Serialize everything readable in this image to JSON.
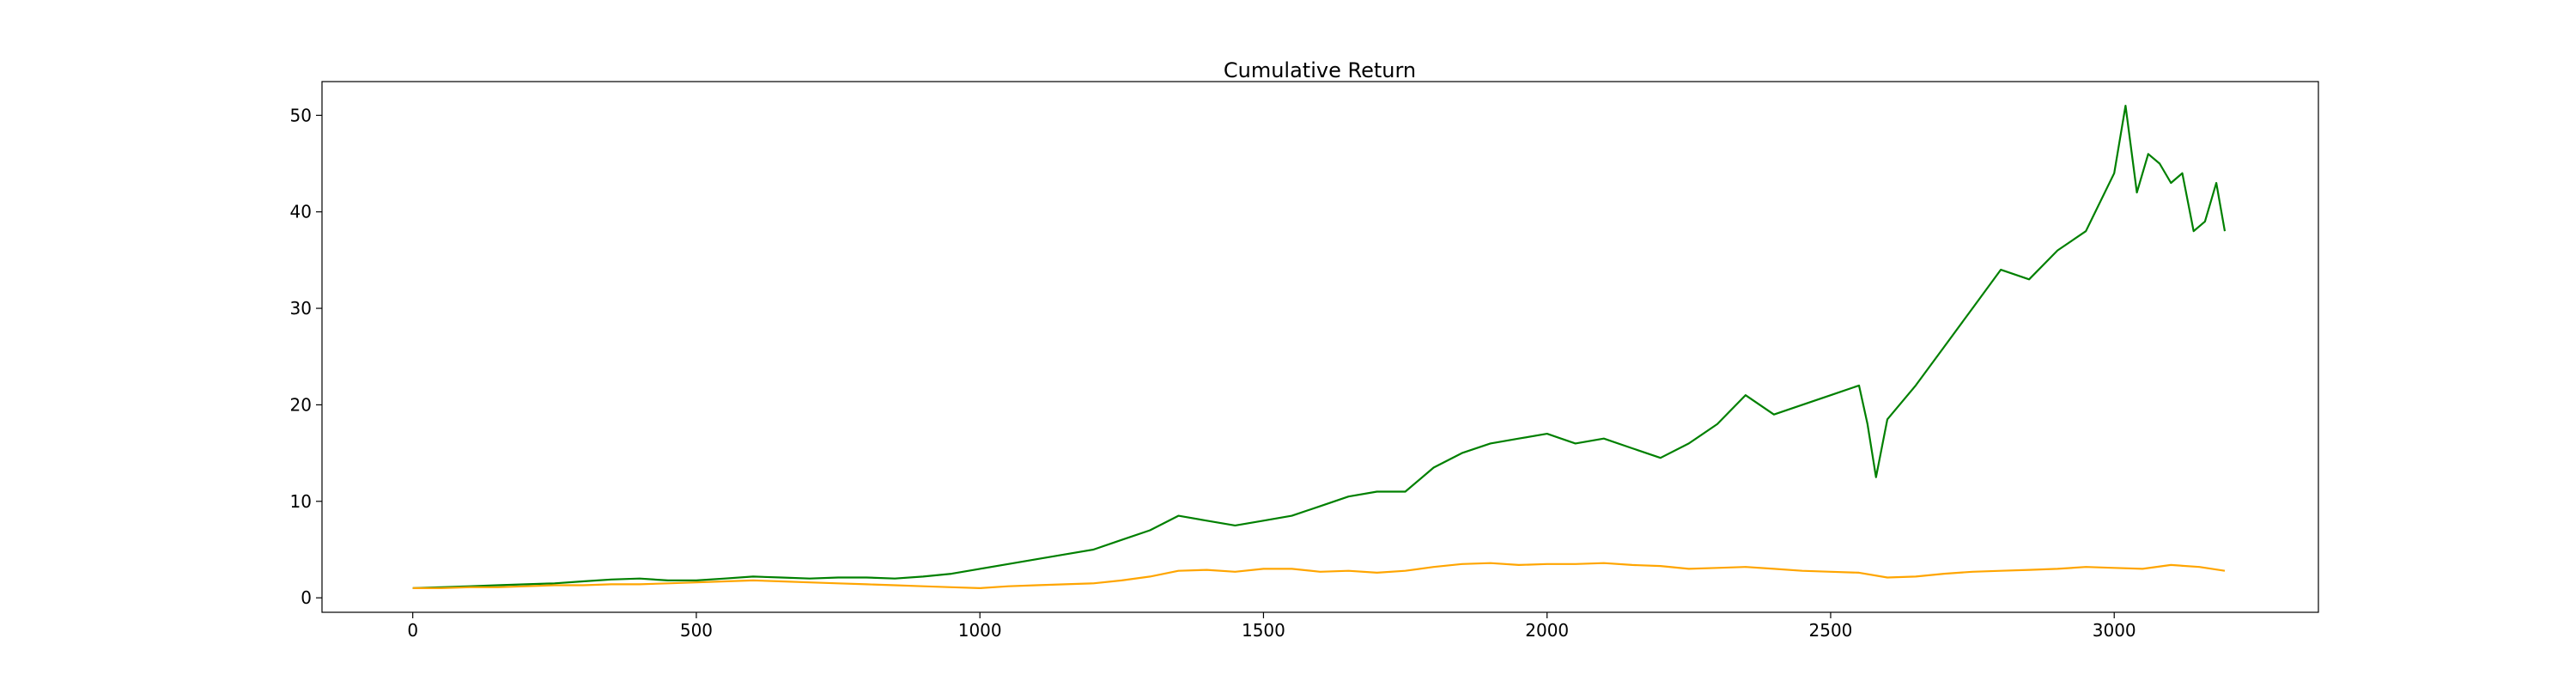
{
  "chart_data": {
    "type": "line",
    "title": "Cumulative Return",
    "xlabel": "",
    "ylabel": "",
    "xlim": [
      -160,
      3360
    ],
    "ylim": [
      -1.5,
      53.5
    ],
    "xticks": [
      0,
      500,
      1000,
      1500,
      2000,
      2500,
      3000
    ],
    "yticks": [
      0,
      10,
      20,
      30,
      40,
      50
    ],
    "grid": false,
    "legend": "none",
    "series": [
      {
        "color": "#008000",
        "x": [
          0,
          50,
          100,
          150,
          200,
          250,
          300,
          350,
          400,
          450,
          500,
          550,
          600,
          650,
          700,
          750,
          800,
          850,
          900,
          950,
          1000,
          1050,
          1100,
          1150,
          1200,
          1250,
          1300,
          1350,
          1400,
          1450,
          1500,
          1550,
          1600,
          1650,
          1700,
          1750,
          1800,
          1850,
          1900,
          1950,
          2000,
          2050,
          2100,
          2150,
          2200,
          2250,
          2300,
          2350,
          2400,
          2450,
          2500,
          2550,
          2565,
          2580,
          2600,
          2650,
          2700,
          2750,
          2800,
          2850,
          2900,
          2950,
          3000,
          3020,
          3040,
          3060,
          3080,
          3100,
          3120,
          3140,
          3160,
          3180,
          3195
        ],
        "y": [
          1.0,
          1.1,
          1.2,
          1.3,
          1.4,
          1.5,
          1.7,
          1.9,
          2.0,
          1.8,
          1.8,
          2.0,
          2.2,
          2.1,
          2.0,
          2.1,
          2.1,
          2.0,
          2.2,
          2.5,
          3.0,
          3.5,
          4.0,
          4.5,
          5.0,
          6.0,
          7.0,
          8.5,
          8.0,
          7.5,
          8.0,
          8.5,
          9.5,
          10.5,
          11.0,
          11.0,
          13.5,
          15.0,
          16.0,
          16.5,
          17.0,
          16.0,
          16.5,
          15.5,
          14.5,
          16.0,
          18.0,
          21.0,
          19.0,
          20.0,
          21.0,
          22.0,
          18.0,
          12.5,
          18.5,
          22.0,
          26.0,
          30.0,
          34.0,
          33.0,
          36.0,
          38.0,
          44.0,
          51.0,
          42.0,
          46.0,
          45.0,
          43.0,
          44.0,
          38.0,
          39.0,
          43.0,
          38.0
        ]
      },
      {
        "color": "#FFA500",
        "x": [
          0,
          50,
          100,
          150,
          200,
          250,
          300,
          350,
          400,
          450,
          500,
          550,
          600,
          650,
          700,
          750,
          800,
          850,
          900,
          950,
          1000,
          1050,
          1100,
          1150,
          1200,
          1250,
          1300,
          1350,
          1400,
          1450,
          1500,
          1550,
          1600,
          1650,
          1700,
          1750,
          1800,
          1850,
          1900,
          1950,
          2000,
          2050,
          2100,
          2150,
          2200,
          2250,
          2300,
          2350,
          2400,
          2450,
          2500,
          2550,
          2600,
          2650,
          2700,
          2750,
          2800,
          2850,
          2900,
          2950,
          3000,
          3050,
          3100,
          3150,
          3195
        ],
        "y": [
          1.0,
          1.0,
          1.1,
          1.1,
          1.2,
          1.3,
          1.3,
          1.4,
          1.4,
          1.5,
          1.6,
          1.7,
          1.8,
          1.7,
          1.6,
          1.5,
          1.4,
          1.3,
          1.2,
          1.1,
          1.0,
          1.2,
          1.3,
          1.4,
          1.5,
          1.8,
          2.2,
          2.8,
          2.9,
          2.7,
          3.0,
          3.0,
          2.7,
          2.8,
          2.6,
          2.8,
          3.2,
          3.5,
          3.6,
          3.4,
          3.5,
          3.5,
          3.6,
          3.4,
          3.3,
          3.0,
          3.1,
          3.2,
          3.0,
          2.8,
          2.7,
          2.6,
          2.1,
          2.2,
          2.5,
          2.7,
          2.8,
          2.9,
          3.0,
          3.2,
          3.1,
          3.0,
          3.4,
          3.2,
          2.8
        ]
      }
    ]
  }
}
